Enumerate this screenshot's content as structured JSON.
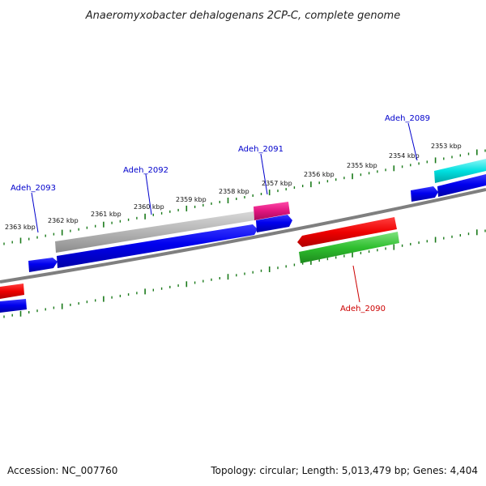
{
  "title": "Anaeromyxobacter dehalogenans 2CP-C, complete genome",
  "footer": {
    "accession": "Accession: NC_007760",
    "summary": "Topology: circular; Length: 5,013,479 bp; Genes: 4,404"
  },
  "colors": {
    "backbone": "#808080",
    "ruler_tick": "#1a7a1a",
    "gene_blue": "#0000ee",
    "gene_gray": "#b0b0b0",
    "gene_magenta": "#e0157f",
    "gene_red": "#ee0000",
    "gene_green": "#2fbf2f",
    "gene_cyan": "#00e0e0",
    "label_blue": "#0000cc",
    "label_red": "#cc0000"
  },
  "ruler": {
    "unit": "kbp",
    "labels": [
      "2363 kbp",
      "2362 kbp",
      "2361 kbp",
      "2360 kbp",
      "2359 kbp",
      "2358 kbp",
      "2357 kbp",
      "2356 kbp",
      "2355 kbp",
      "2354 kbp",
      "2353 kbp"
    ]
  },
  "gene_labels": [
    {
      "name": "Adeh_2093",
      "color": "blue"
    },
    {
      "name": "Adeh_2092",
      "color": "blue"
    },
    {
      "name": "Adeh_2091",
      "color": "blue"
    },
    {
      "name": "Adeh_2089",
      "color": "blue"
    },
    {
      "name": "Adeh_2090",
      "color": "red"
    }
  ],
  "features": [
    {
      "id": "forward-gene-1",
      "color": "gene_blue",
      "strand": "+"
    },
    {
      "id": "forward-gene-2",
      "color": "gene_blue",
      "strand": "+"
    },
    {
      "id": "forward-gene-3",
      "color": "gene_blue",
      "strand": "+"
    },
    {
      "id": "forward-gene-4",
      "color": "gene_blue",
      "strand": "+"
    },
    {
      "id": "forward-gene-5",
      "color": "gene_blue",
      "strand": "+"
    },
    {
      "id": "forward-gene-6",
      "color": "gene_blue",
      "strand": "+"
    },
    {
      "id": "gray-feature",
      "color": "gene_gray",
      "strand": "+"
    },
    {
      "id": "magenta-feature",
      "color": "gene_magenta",
      "strand": "+"
    },
    {
      "id": "cyan-feature",
      "color": "gene_cyan",
      "strand": "+"
    },
    {
      "id": "reverse-gene-red",
      "color": "gene_red",
      "strand": "-"
    },
    {
      "id": "red-feature-left",
      "color": "gene_red",
      "strand": "-"
    },
    {
      "id": "green-feature",
      "color": "gene_green",
      "strand": "-"
    }
  ]
}
